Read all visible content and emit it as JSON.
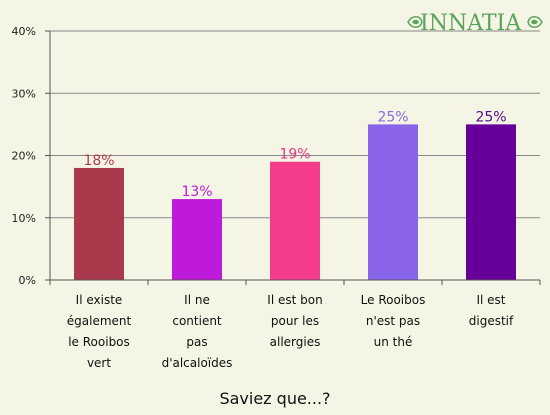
{
  "logo": {
    "text": "INNATIA",
    "color": "#5aa45a"
  },
  "chart_data": {
    "type": "bar",
    "title": "Saviez que...?",
    "xlabel": "",
    "ylabel": "",
    "ylim": [
      0,
      40
    ],
    "yticks": [
      0,
      10,
      20,
      30,
      40
    ],
    "ytick_labels": [
      "0%",
      "10%",
      "20%",
      "30%",
      "40%"
    ],
    "grid": true,
    "categories": [
      [
        "Il existe",
        "également",
        "le Rooibos",
        "vert"
      ],
      [
        "Il ne",
        "contient",
        "pas",
        "d'alcaloïdes"
      ],
      [
        "Il est bon",
        "pour les",
        "allergies"
      ],
      [
        "Le Rooibos",
        "n'est pas",
        "un thé"
      ],
      [
        "Il est",
        "digestif"
      ]
    ],
    "values": [
      18,
      13,
      19,
      25,
      25
    ],
    "value_labels": [
      "18%",
      "13%",
      "19%",
      "25%",
      "25%"
    ],
    "colors": [
      "#a9394b",
      "#bf1ad9",
      "#f53c8c",
      "#8a64e8",
      "#660099"
    ],
    "label_colors": [
      "#b83a4a",
      "#c21ad8",
      "#e43685",
      "#8a6ae0",
      "#5a0a8a"
    ]
  }
}
